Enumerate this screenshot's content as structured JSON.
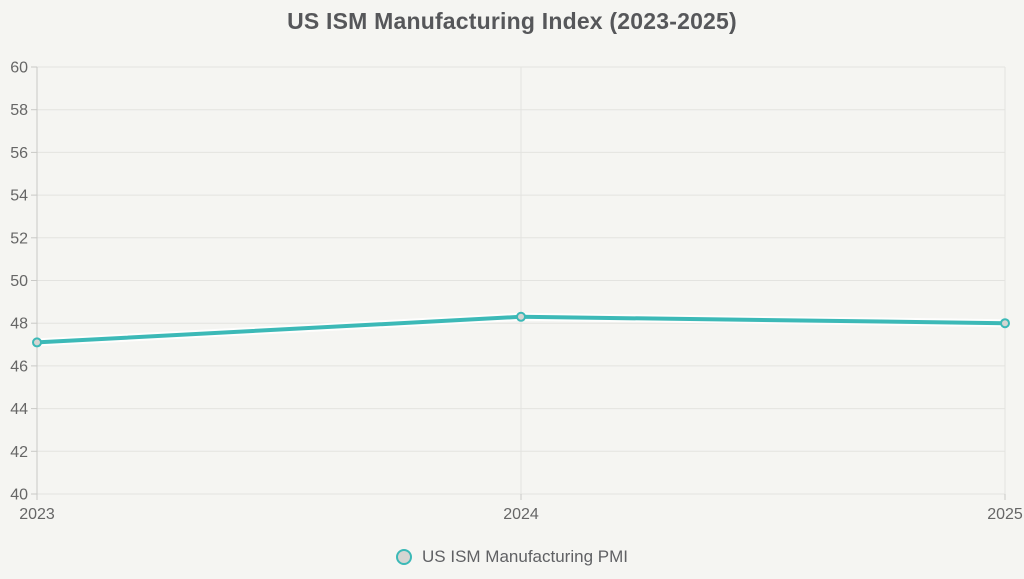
{
  "title": "US ISM Manufacturing Index (2023-2025)",
  "chart_data": {
    "type": "line",
    "title": "US ISM Manufacturing Index (2023-2025)",
    "categories": [
      "2023",
      "2024",
      "2025"
    ],
    "series": [
      {
        "name": "US ISM Manufacturing PMI",
        "values": [
          47.1,
          48.3,
          48.0
        ]
      }
    ],
    "xlabel": "",
    "ylabel": "",
    "ylim": [
      40,
      60
    ],
    "ytick_step": 2,
    "ytick_labels": [
      "40",
      "42",
      "44",
      "46",
      "48",
      "50",
      "52",
      "54",
      "56",
      "58",
      "60"
    ],
    "grid": true,
    "legend_position": "bottom"
  },
  "legend": {
    "label": "US ISM Manufacturing PMI",
    "marker": "circle-icon"
  },
  "colors": {
    "background": "#f5f5f2",
    "line": "#3cb9b7",
    "marker_fill": "#d5d5d2",
    "gridline": "#e3e3e0",
    "axis": "#c9c9c6",
    "tick_text": "#666666",
    "title_text": "#56575a",
    "line_halo": "#ffffff"
  }
}
